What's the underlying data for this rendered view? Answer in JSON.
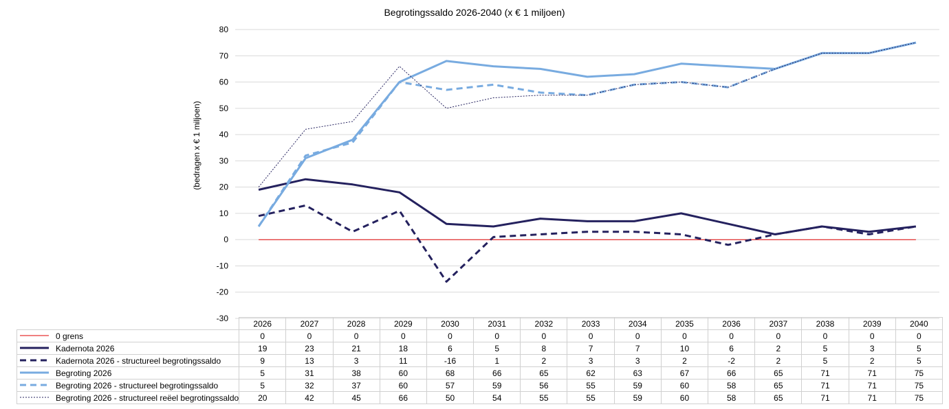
{
  "chart_data": {
    "type": "line",
    "title": "Begrotingssaldo 2026-2040  (x € 1 miljoen)",
    "xlabel": "",
    "ylabel": "(bedragen  x € 1 miljoen)",
    "ylim": [
      -30,
      80
    ],
    "yticks": [
      80,
      70,
      60,
      50,
      40,
      30,
      20,
      10,
      0,
      -10,
      -20,
      -30
    ],
    "grid": true,
    "legend": "bottom-table",
    "categories": [
      "2026",
      "2027",
      "2028",
      "2029",
      "2030",
      "2031",
      "2032",
      "2033",
      "2034",
      "2035",
      "2036",
      "2037",
      "2038",
      "2039",
      "2040"
    ],
    "series": [
      {
        "name": "0 grens",
        "color": "#e00000",
        "style": "solid-thin",
        "values": [
          0,
          0,
          0,
          0,
          0,
          0,
          0,
          0,
          0,
          0,
          0,
          0,
          0,
          0,
          0
        ]
      },
      {
        "name": "Kadernota 2026",
        "color": "#24215e",
        "style": "solid-thick",
        "values": [
          19,
          23,
          21,
          18,
          6,
          5,
          8,
          7,
          7,
          10,
          6,
          2,
          5,
          3,
          5
        ]
      },
      {
        "name": "Kadernota 2026 - structureel begrotingssaldo",
        "color": "#24215e",
        "style": "dashed-thick",
        "values": [
          9,
          13,
          3,
          11,
          -16,
          1,
          2,
          3,
          3,
          2,
          -2,
          2,
          5,
          2,
          5
        ]
      },
      {
        "name": "Begroting 2026",
        "color": "#78abe0",
        "style": "solid-thick",
        "values": [
          5,
          31,
          38,
          60,
          68,
          66,
          65,
          62,
          63,
          67,
          66,
          65,
          71,
          71,
          75
        ]
      },
      {
        "name": "Begroting 2026 - structureel begrotingssaldo",
        "color": "#78abe0",
        "style": "dashed-thick",
        "values": [
          5,
          32,
          37,
          60,
          57,
          59,
          56,
          55,
          59,
          60,
          58,
          65,
          71,
          71,
          75
        ]
      },
      {
        "name": "Begroting 2026 - structureel reëel begrotingssaldo",
        "color": "#24215e",
        "style": "dotted-thin",
        "values": [
          20,
          42,
          45,
          66,
          50,
          54,
          55,
          55,
          59,
          60,
          58,
          65,
          71,
          71,
          75
        ]
      }
    ]
  }
}
